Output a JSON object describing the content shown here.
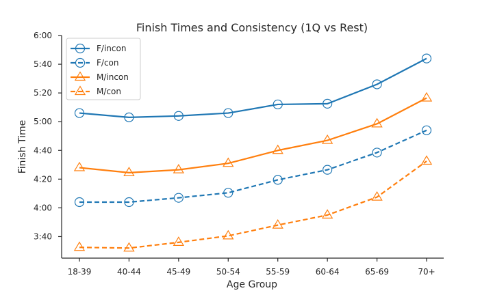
{
  "chart_data": {
    "type": "line",
    "title": "Finish Times and Consistency (1Q vs Rest)",
    "xlabel": "Age Group",
    "ylabel": "Finish Time",
    "categories": [
      "18-39",
      "40-44",
      "45-49",
      "50-54",
      "55-59",
      "60-64",
      "65-69",
      "70+"
    ],
    "y_unit": "minutes (h:mm)",
    "ylim": [
      205,
      360
    ],
    "yticks": [
      220,
      240,
      260,
      280,
      300,
      320,
      340,
      360
    ],
    "ytick_labels": [
      "3:40",
      "4:00",
      "4:20",
      "4:40",
      "5:00",
      "5:20",
      "5:40",
      "6:00"
    ],
    "grid": false,
    "legend": "top-left",
    "series": [
      {
        "name": "F/incon",
        "color": "#1f77b4",
        "linestyle": "solid",
        "marker": "circle",
        "values": [
          306,
          303,
          304,
          306,
          312,
          312.5,
          326,
          344
        ]
      },
      {
        "name": "F/con",
        "color": "#1f77b4",
        "linestyle": "dashed",
        "marker": "circle",
        "values": [
          244,
          244,
          247,
          250.5,
          259.5,
          266.5,
          278.5,
          294
        ]
      },
      {
        "name": "M/incon",
        "color": "#ff7f0e",
        "linestyle": "solid",
        "marker": "triangle",
        "values": [
          268,
          264.5,
          266.5,
          271,
          280,
          287,
          298.5,
          316.5
        ]
      },
      {
        "name": "M/con",
        "color": "#ff7f0e",
        "linestyle": "dashed",
        "marker": "triangle",
        "values": [
          212.5,
          212,
          216,
          220.5,
          228,
          235,
          247.5,
          272.5
        ]
      }
    ]
  }
}
